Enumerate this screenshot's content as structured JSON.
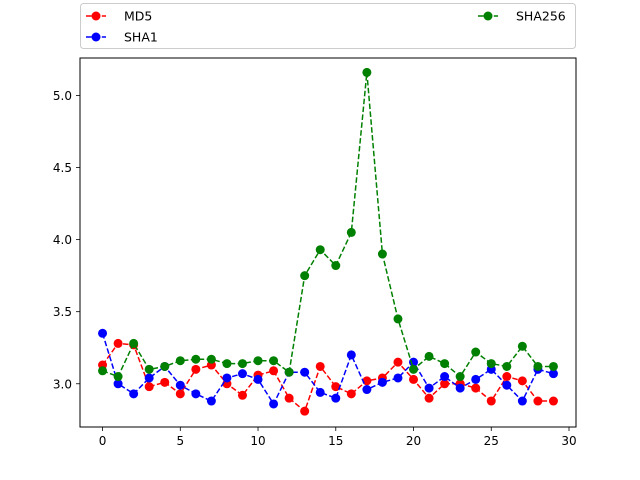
{
  "chart_data": {
    "type": "line",
    "title": "",
    "xlabel": "",
    "ylabel": "",
    "xlim": [
      -1.45,
      30.45
    ],
    "ylim": [
      2.7,
      5.26
    ],
    "xticks": [
      0,
      5,
      10,
      15,
      20,
      25,
      30
    ],
    "yticks": [
      3.0,
      3.5,
      4.0,
      4.5,
      5.0
    ],
    "xtick_labels": [
      "0",
      "5",
      "10",
      "15",
      "20",
      "25",
      "30"
    ],
    "ytick_labels": [
      "3.0",
      "3.5",
      "4.0",
      "4.5",
      "5.0"
    ],
    "grid": false,
    "legend_placement": "above plot, two columns",
    "x": [
      0,
      1,
      2,
      3,
      4,
      5,
      6,
      7,
      8,
      9,
      10,
      11,
      12,
      13,
      14,
      15,
      16,
      17,
      18,
      19,
      20,
      21,
      22,
      23,
      24,
      25,
      26,
      27,
      28,
      29
    ],
    "series": [
      {
        "name": "MD5",
        "color": "#ff0000",
        "linestyle": "dashed",
        "marker": "circle",
        "values": [
          3.13,
          3.28,
          3.27,
          2.98,
          3.01,
          2.93,
          3.1,
          3.13,
          3.0,
          2.92,
          3.06,
          3.09,
          2.9,
          2.81,
          3.12,
          2.98,
          2.93,
          3.02,
          3.04,
          3.15,
          3.03,
          2.9,
          3.0,
          3.0,
          2.97,
          2.88,
          3.05,
          3.02,
          2.88,
          2.88
        ]
      },
      {
        "name": "SHA1",
        "color": "#0000ff",
        "linestyle": "dashed",
        "marker": "circle",
        "values": [
          3.35,
          3.0,
          2.93,
          3.04,
          3.12,
          2.99,
          2.93,
          2.88,
          3.04,
          3.07,
          3.03,
          2.86,
          3.08,
          3.08,
          2.94,
          2.9,
          3.2,
          2.96,
          3.01,
          3.04,
          3.15,
          2.97,
          3.05,
          2.97,
          3.03,
          3.1,
          2.99,
          2.88,
          3.1,
          3.07
        ]
      },
      {
        "name": "SHA256",
        "color": "#008000",
        "linestyle": "dashed",
        "marker": "circle",
        "values": [
          3.09,
          3.05,
          3.28,
          3.1,
          3.12,
          3.16,
          3.17,
          3.17,
          3.14,
          3.14,
          3.16,
          3.16,
          3.08,
          3.75,
          3.93,
          3.82,
          4.05,
          5.16,
          3.9,
          3.45,
          3.1,
          3.19,
          3.14,
          3.05,
          3.22,
          3.14,
          3.12,
          3.26,
          3.12,
          3.12
        ]
      }
    ]
  }
}
